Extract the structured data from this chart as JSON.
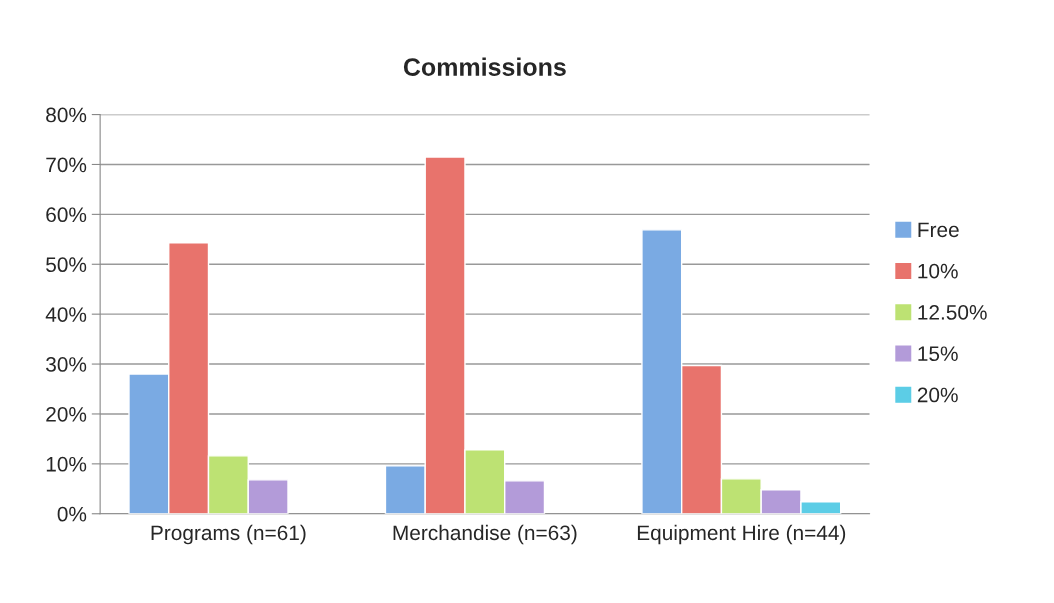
{
  "chart_data": {
    "type": "bar",
    "title": "Commissions",
    "categories": [
      "Programs (n=61)",
      "Merchandise (n=63)",
      "Equipment Hire (n=44)"
    ],
    "series": [
      {
        "name": "Free",
        "color": "#7aaae3",
        "values": [
          28,
          9.6,
          56.9
        ]
      },
      {
        "name": "10%",
        "color": "#e8736c",
        "values": [
          54.3,
          71.5,
          29.7
        ]
      },
      {
        "name": "12.50%",
        "color": "#bde273",
        "values": [
          11.6,
          12.8,
          7.0
        ]
      },
      {
        "name": "15%",
        "color": "#b39bd9",
        "values": [
          6.8,
          6.6,
          4.8
        ]
      },
      {
        "name": "20%",
        "color": "#5ccde6",
        "values": [
          null,
          null,
          2.4
        ]
      }
    ],
    "ylim": [
      0,
      80
    ],
    "yticks": [
      {
        "value": 0,
        "label": "0%"
      },
      {
        "value": 10,
        "label": "10%"
      },
      {
        "value": 20,
        "label": "20%"
      },
      {
        "value": 30,
        "label": "30%"
      },
      {
        "value": 40,
        "label": "40%"
      },
      {
        "value": 50,
        "label": "50%"
      },
      {
        "value": 60,
        "label": "60%"
      },
      {
        "value": 70,
        "label": "70%"
      },
      {
        "value": 80,
        "label": "80%"
      }
    ],
    "grid": "y",
    "legend": "right"
  }
}
